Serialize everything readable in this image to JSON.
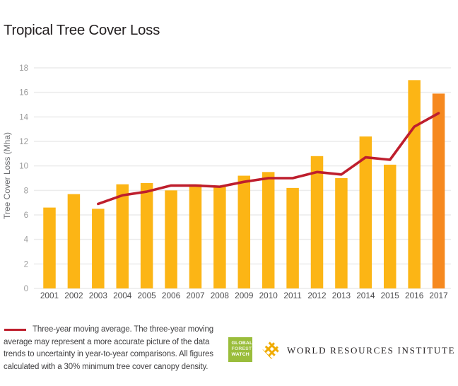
{
  "title": "Tropical Tree Cover Loss",
  "chart_data": {
    "type": "bar",
    "title": "Tropical Tree Cover Loss",
    "xlabel": "",
    "ylabel": "Tree Cover Loss (Mha)",
    "ylim": [
      0,
      18
    ],
    "yticks": [
      0,
      2,
      4,
      6,
      8,
      10,
      12,
      14,
      16,
      18
    ],
    "grid": true,
    "legend_position": "below-left",
    "categories": [
      "2001",
      "2002",
      "2003",
      "2004",
      "2005",
      "2006",
      "2007",
      "2008",
      "2009",
      "2010",
      "2011",
      "2012",
      "2013",
      "2014",
      "2015",
      "2016",
      "2017"
    ],
    "series": [
      {
        "name": "Tropical tree cover loss (Mha)",
        "type": "bar",
        "values": [
          6.6,
          7.7,
          6.5,
          8.5,
          8.6,
          8.0,
          8.5,
          8.3,
          9.2,
          9.5,
          8.2,
          10.8,
          9.0,
          12.4,
          10.1,
          17.0,
          15.9
        ]
      },
      {
        "name": "Three-year moving average",
        "type": "line",
        "start_category": "2003",
        "values": [
          6.9,
          7.6,
          7.9,
          8.4,
          8.4,
          8.3,
          8.7,
          9.0,
          9.0,
          9.5,
          9.3,
          10.7,
          10.5,
          13.2,
          14.3
        ]
      }
    ],
    "colors": {
      "bar": "#FCB515",
      "bar_highlight": "#F6891F",
      "highlight_category": "2017",
      "line": "#BE1E2D",
      "gridline": "#ECECEC",
      "tick_label": "#9B9B9B",
      "category_label": "#4D4D4F"
    }
  },
  "legend": {
    "lines": [
      "Three-year moving average. The three-year moving",
      "average may represent a more accurate picture of the data",
      "trends to uncertainty in year-to-year comparisons. All figures",
      "calculated with a 30% minimum tree cover canopy density."
    ]
  },
  "logos": {
    "gfw": {
      "lines": [
        "GLOBAL",
        "FOREST",
        "WATCH"
      ],
      "bg_color": "#9ABD3B"
    },
    "wri": {
      "name": "WORLD RESOURCES INSTITUTE",
      "icon_color": "#F0AB00"
    }
  }
}
